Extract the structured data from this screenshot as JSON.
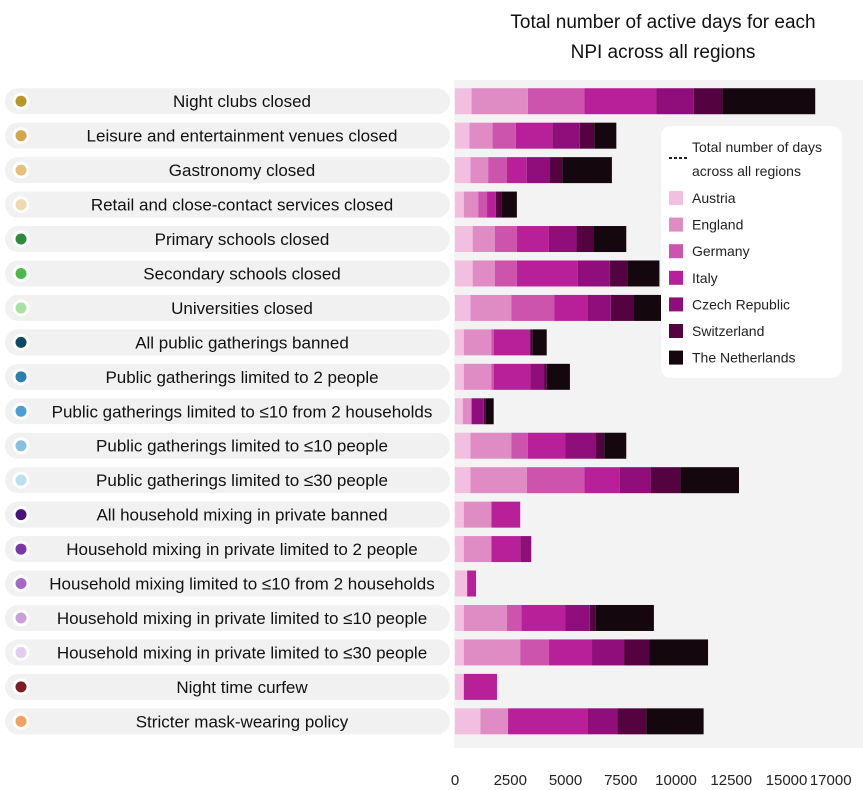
{
  "chart_data": {
    "type": "bar",
    "orientation": "horizontal",
    "stacked": true,
    "title_lines": [
      "Total number of active days for each",
      "NPI across all regions"
    ],
    "xlabel": "",
    "ylabel": "",
    "xlim": [
      0,
      17000
    ],
    "x_ticks": [
      0,
      2500,
      5000,
      7500,
      10000,
      12500,
      15000,
      17000
    ],
    "reference_line": {
      "value": 18700,
      "label_lines": [
        "Total number of days",
        "across all regions"
      ]
    },
    "legend_position": "right",
    "categories": [
      "Night clubs closed",
      "Leisure and entertainment venues closed",
      "Gastronomy closed",
      "Retail and close-contact services closed",
      "Primary schools closed",
      "Secondary schools closed",
      "Universities closed",
      "All public gatherings banned",
      "Public gatherings limited to 2 people",
      "Public gatherings limited to ≤10 from 2 households",
      "Public gatherings limited to ≤10 people",
      "Public gatherings limited to ≤30 people",
      "All household mixing in private banned",
      "Household mixing in private limited to 2 people",
      "Household mixing limited to ≤10 from 2 households",
      "Household mixing in private limited to ≤10 people",
      "Household mixing in private limited to ≤30 people",
      "Night time curfew",
      "Stricter mask-wearing policy"
    ],
    "category_dot_colors": [
      "#b8962a",
      "#d4a64a",
      "#e4c07a",
      "#f0d8ae",
      "#2e8b3e",
      "#4cba4a",
      "#a8e2a0",
      "#0d4a66",
      "#2a80b0",
      "#4aa0d4",
      "#86c0e0",
      "#bcdff0",
      "#4a1278",
      "#7a36a8",
      "#a26ac4",
      "#c8a0dc",
      "#e4ccf0",
      "#7a1e22",
      "#f4a060"
    ],
    "series": [
      {
        "name": "Austria",
        "color": "#f2bfdf",
        "values": [
          750,
          650,
          700,
          400,
          800,
          800,
          700,
          400,
          400,
          350,
          700,
          700,
          400,
          400,
          550,
          400,
          400,
          400,
          1150
        ]
      },
      {
        "name": "England",
        "color": "#e08cc4",
        "values": [
          2550,
          1050,
          800,
          650,
          1000,
          1000,
          1850,
          1250,
          1250,
          400,
          1850,
          2550,
          1250,
          1250,
          0,
          1950,
          2550,
          0,
          1250
        ]
      },
      {
        "name": "Germany",
        "color": "#cc54ac",
        "values": [
          2550,
          1050,
          850,
          400,
          1000,
          1000,
          1950,
          100,
          100,
          0,
          750,
          2600,
          0,
          0,
          0,
          650,
          1300,
          0,
          0
        ]
      },
      {
        "name": "Italy",
        "color": "#b8209a",
        "values": [
          3250,
          1650,
          900,
          400,
          1450,
          2750,
          1500,
          1650,
          1650,
          0,
          1700,
          1600,
          1300,
          1300,
          400,
          2000,
          1950,
          1500,
          3600
        ]
      },
      {
        "name": "Czech Republic",
        "color": "#900e7c",
        "values": [
          1700,
          1250,
          1050,
          0,
          1250,
          1450,
          1050,
          0,
          650,
          550,
          1350,
          1400,
          0,
          500,
          0,
          1100,
          1450,
          0,
          1350
        ]
      },
      {
        "name": "Switzerland",
        "color": "#540340",
        "values": [
          1300,
          650,
          550,
          250,
          750,
          800,
          1050,
          100,
          100,
          100,
          400,
          1350,
          0,
          0,
          0,
          250,
          1150,
          0,
          1300
        ]
      },
      {
        "name": "The Netherlands",
        "color": "#14070e",
        "values": [
          4200,
          1000,
          2250,
          700,
          1500,
          1450,
          1700,
          650,
          1050,
          350,
          1000,
          2650,
          0,
          0,
          0,
          2650,
          2650,
          0,
          2600
        ]
      }
    ]
  }
}
